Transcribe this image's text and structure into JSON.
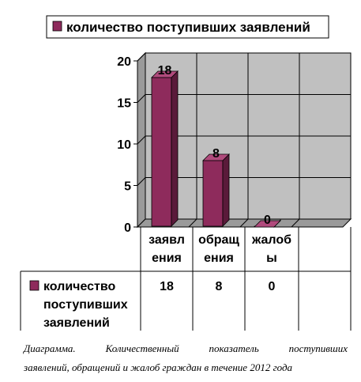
{
  "colors": {
    "bar_front": "#8e2b5c",
    "bar_side": "#5a1a3a",
    "bar_top": "#b04a7c",
    "wall": "#c0c0c0",
    "floor": "#9a9a9a",
    "grid": "#000000"
  },
  "legend": {
    "label": "количество поступивших заявлений"
  },
  "chart_data": {
    "type": "bar",
    "categories": [
      "заявления",
      "обращения",
      "жалобы"
    ],
    "category_lines": [
      [
        "заявл",
        "ения"
      ],
      [
        "обращ",
        "ения"
      ],
      [
        "жалоб",
        "ы"
      ]
    ],
    "series": [
      {
        "name": "количество поступивших заявлений",
        "values": [
          18,
          8,
          0
        ]
      }
    ],
    "value_labels": [
      "18",
      "8",
      "0"
    ],
    "yticks": [
      "0",
      "5",
      "10",
      "15",
      "20"
    ],
    "ylim": [
      0,
      20
    ],
    "grid": true,
    "legend": "top"
  },
  "table": {
    "series_label_lines": [
      "количество",
      "поступивших",
      "заявлений"
    ],
    "values": [
      "18",
      "8",
      "0"
    ]
  },
  "caption": {
    "line1": "Диаграмма. Количественный показатель поступивших",
    "line2": "заявлений, обращений и жалоб граждан в течение 2012 года"
  }
}
